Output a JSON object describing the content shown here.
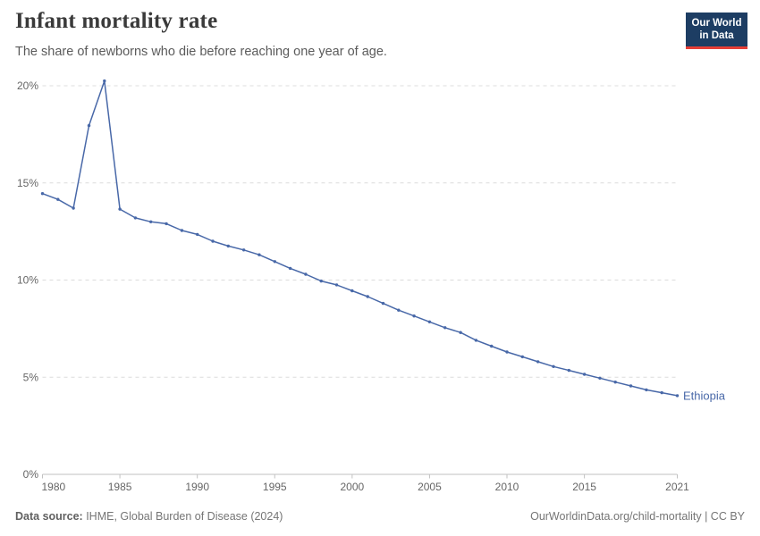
{
  "header": {
    "title": "Infant mortality rate",
    "subtitle": "The share of newborns who die before reaching one year of age.",
    "logo": {
      "line1": "Our World",
      "line2": "in Data"
    }
  },
  "footer": {
    "datasource_label": "Data source:",
    "datasource_value": " IHME, Global Burden of Disease (2024)",
    "link": "OurWorldinData.org/child-mortality",
    "license": " | CC BY"
  },
  "colors": {
    "line": "#4868a8",
    "entity_label": "#4868a8",
    "logo_bg": "#1d3d63",
    "logo_red": "#e63e36",
    "grid": "#dcdcdc",
    "axis": "#c2c2c2",
    "tick_text": "#666666",
    "title_text": "#3a3a3a",
    "subtitle_text": "#5b5b5b",
    "footer_text": "#757575"
  },
  "chart_data": {
    "type": "line",
    "title": "Infant mortality rate",
    "subtitle": "The share of newborns who die before reaching one year of age.",
    "entity": "Ethiopia",
    "unit": "%",
    "x": [
      1980,
      1981,
      1982,
      1983,
      1984,
      1985,
      1986,
      1987,
      1988,
      1989,
      1990,
      1991,
      1992,
      1993,
      1994,
      1995,
      1996,
      1997,
      1998,
      1999,
      2000,
      2001,
      2002,
      2003,
      2004,
      2005,
      2006,
      2007,
      2008,
      2009,
      2010,
      2011,
      2012,
      2013,
      2014,
      2015,
      2016,
      2017,
      2018,
      2019,
      2020,
      2021
    ],
    "values": [
      14.45,
      14.15,
      13.7,
      17.95,
      20.25,
      13.65,
      13.2,
      13.0,
      12.9,
      12.55,
      12.35,
      12.0,
      11.75,
      11.55,
      11.3,
      10.95,
      10.6,
      10.3,
      9.95,
      9.75,
      9.45,
      9.15,
      8.8,
      8.45,
      8.15,
      7.85,
      7.55,
      7.3,
      6.9,
      6.6,
      6.3,
      6.05,
      5.8,
      5.55,
      5.35,
      5.15,
      4.95,
      4.75,
      4.55,
      4.35,
      4.2,
      4.05
    ],
    "xlabel": "",
    "ylabel": "",
    "xlim": [
      1980,
      2021
    ],
    "ylim": [
      0,
      20
    ],
    "yticks": [
      {
        "value": 0,
        "label": "0%"
      },
      {
        "value": 5,
        "label": "5%"
      },
      {
        "value": 10,
        "label": "10%"
      },
      {
        "value": 15,
        "label": "15%"
      },
      {
        "value": 20,
        "label": "20%"
      }
    ],
    "xticks": [
      {
        "value": 1980,
        "label": "1980"
      },
      {
        "value": 1985,
        "label": "1985"
      },
      {
        "value": 1990,
        "label": "1990"
      },
      {
        "value": 1995,
        "label": "1995"
      },
      {
        "value": 2000,
        "label": "2000"
      },
      {
        "value": 2005,
        "label": "2005"
      },
      {
        "value": 2010,
        "label": "2010"
      },
      {
        "value": 2015,
        "label": "2015"
      },
      {
        "value": 2021,
        "label": "2021"
      }
    ],
    "grid": "horizontal-dashed",
    "legend_position": "end-of-line-label",
    "markers": true
  }
}
